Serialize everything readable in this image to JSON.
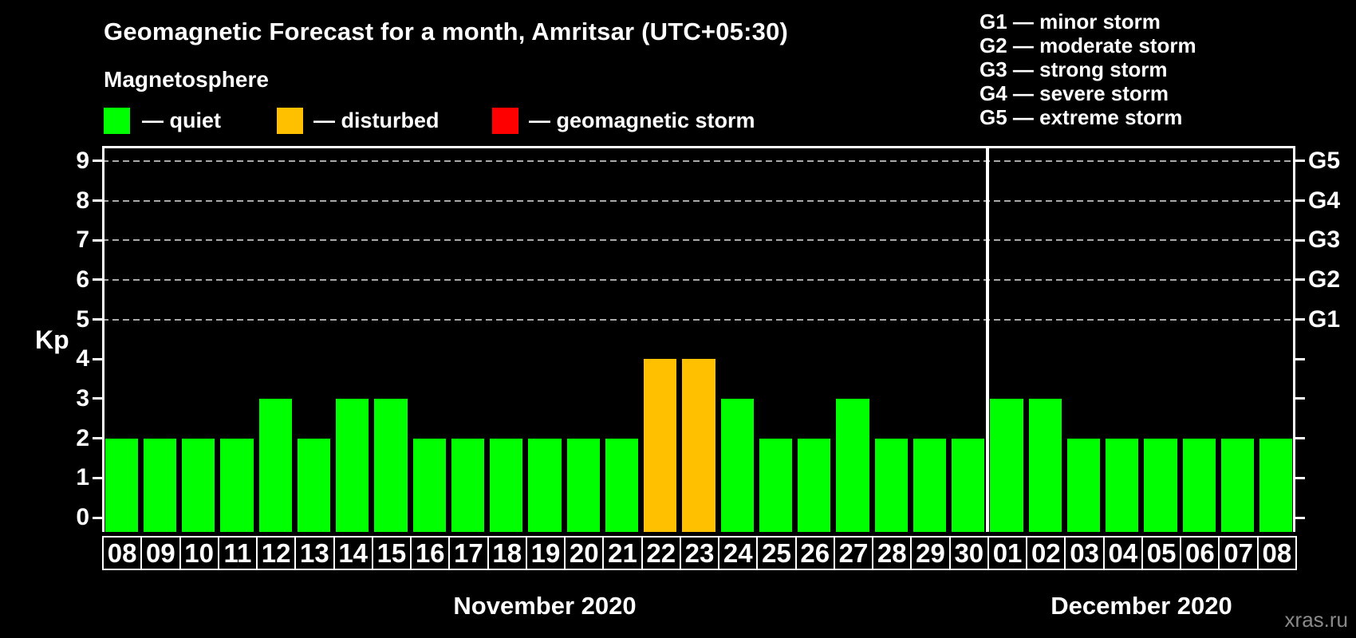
{
  "title": "Geomagnetic Forecast for a month, Amritsar (UTC+05:30)",
  "subtitle": "Magnetosphere",
  "watermark": "xras.ru",
  "colors": {
    "quiet": "#00ff00",
    "disturbed": "#ffc000",
    "storm": "#ff0000",
    "background": "#000000",
    "axis": "#ffffff",
    "grid": "#aaaaaa",
    "watermark": "#8a8a8a"
  },
  "legend": {
    "items": [
      {
        "label": "— quiet",
        "status": "quiet"
      },
      {
        "label": "— disturbed",
        "status": "disturbed"
      },
      {
        "label": "— geomagnetic storm",
        "status": "storm"
      }
    ]
  },
  "g_legend": [
    "G1 — minor storm",
    "G2 — moderate storm",
    "G3 — strong storm",
    "G4 — severe storm",
    "G5 — extreme storm"
  ],
  "chart_data": {
    "type": "bar",
    "title": "Geomagnetic Forecast for a month, Amritsar (UTC+05:30)",
    "ylabel": "Kp",
    "ylim": [
      0,
      9
    ],
    "yticks": [
      0,
      1,
      2,
      3,
      4,
      5,
      6,
      7,
      8,
      9
    ],
    "grid_levels": [
      5,
      6,
      7,
      8,
      9
    ],
    "legend_position": "top",
    "right_axis": [
      {
        "kp": 5,
        "label": "G1"
      },
      {
        "kp": 6,
        "label": "G2"
      },
      {
        "kp": 7,
        "label": "G3"
      },
      {
        "kp": 8,
        "label": "G4"
      },
      {
        "kp": 9,
        "label": "G5"
      }
    ],
    "months": [
      {
        "label": "November 2020",
        "bars": [
          {
            "day": "08",
            "kp": 2,
            "status": "quiet"
          },
          {
            "day": "09",
            "kp": 2,
            "status": "quiet"
          },
          {
            "day": "10",
            "kp": 2,
            "status": "quiet"
          },
          {
            "day": "11",
            "kp": 2,
            "status": "quiet"
          },
          {
            "day": "12",
            "kp": 3,
            "status": "quiet"
          },
          {
            "day": "13",
            "kp": 2,
            "status": "quiet"
          },
          {
            "day": "14",
            "kp": 3,
            "status": "quiet"
          },
          {
            "day": "15",
            "kp": 3,
            "status": "quiet"
          },
          {
            "day": "16",
            "kp": 2,
            "status": "quiet"
          },
          {
            "day": "17",
            "kp": 2,
            "status": "quiet"
          },
          {
            "day": "18",
            "kp": 2,
            "status": "quiet"
          },
          {
            "day": "19",
            "kp": 2,
            "status": "quiet"
          },
          {
            "day": "20",
            "kp": 2,
            "status": "quiet"
          },
          {
            "day": "21",
            "kp": 2,
            "status": "quiet"
          },
          {
            "day": "22",
            "kp": 4,
            "status": "disturbed"
          },
          {
            "day": "23",
            "kp": 4,
            "status": "disturbed"
          },
          {
            "day": "24",
            "kp": 3,
            "status": "quiet"
          },
          {
            "day": "25",
            "kp": 2,
            "status": "quiet"
          },
          {
            "day": "26",
            "kp": 2,
            "status": "quiet"
          },
          {
            "day": "27",
            "kp": 3,
            "status": "quiet"
          },
          {
            "day": "28",
            "kp": 2,
            "status": "quiet"
          },
          {
            "day": "29",
            "kp": 2,
            "status": "quiet"
          },
          {
            "day": "30",
            "kp": 2,
            "status": "quiet"
          }
        ]
      },
      {
        "label": "December 2020",
        "bars": [
          {
            "day": "01",
            "kp": 3,
            "status": "quiet"
          },
          {
            "day": "02",
            "kp": 3,
            "status": "quiet"
          },
          {
            "day": "03",
            "kp": 2,
            "status": "quiet"
          },
          {
            "day": "04",
            "kp": 2,
            "status": "quiet"
          },
          {
            "day": "05",
            "kp": 2,
            "status": "quiet"
          },
          {
            "day": "06",
            "kp": 2,
            "status": "quiet"
          },
          {
            "day": "07",
            "kp": 2,
            "status": "quiet"
          },
          {
            "day": "08",
            "kp": 2,
            "status": "quiet"
          }
        ]
      }
    ]
  }
}
